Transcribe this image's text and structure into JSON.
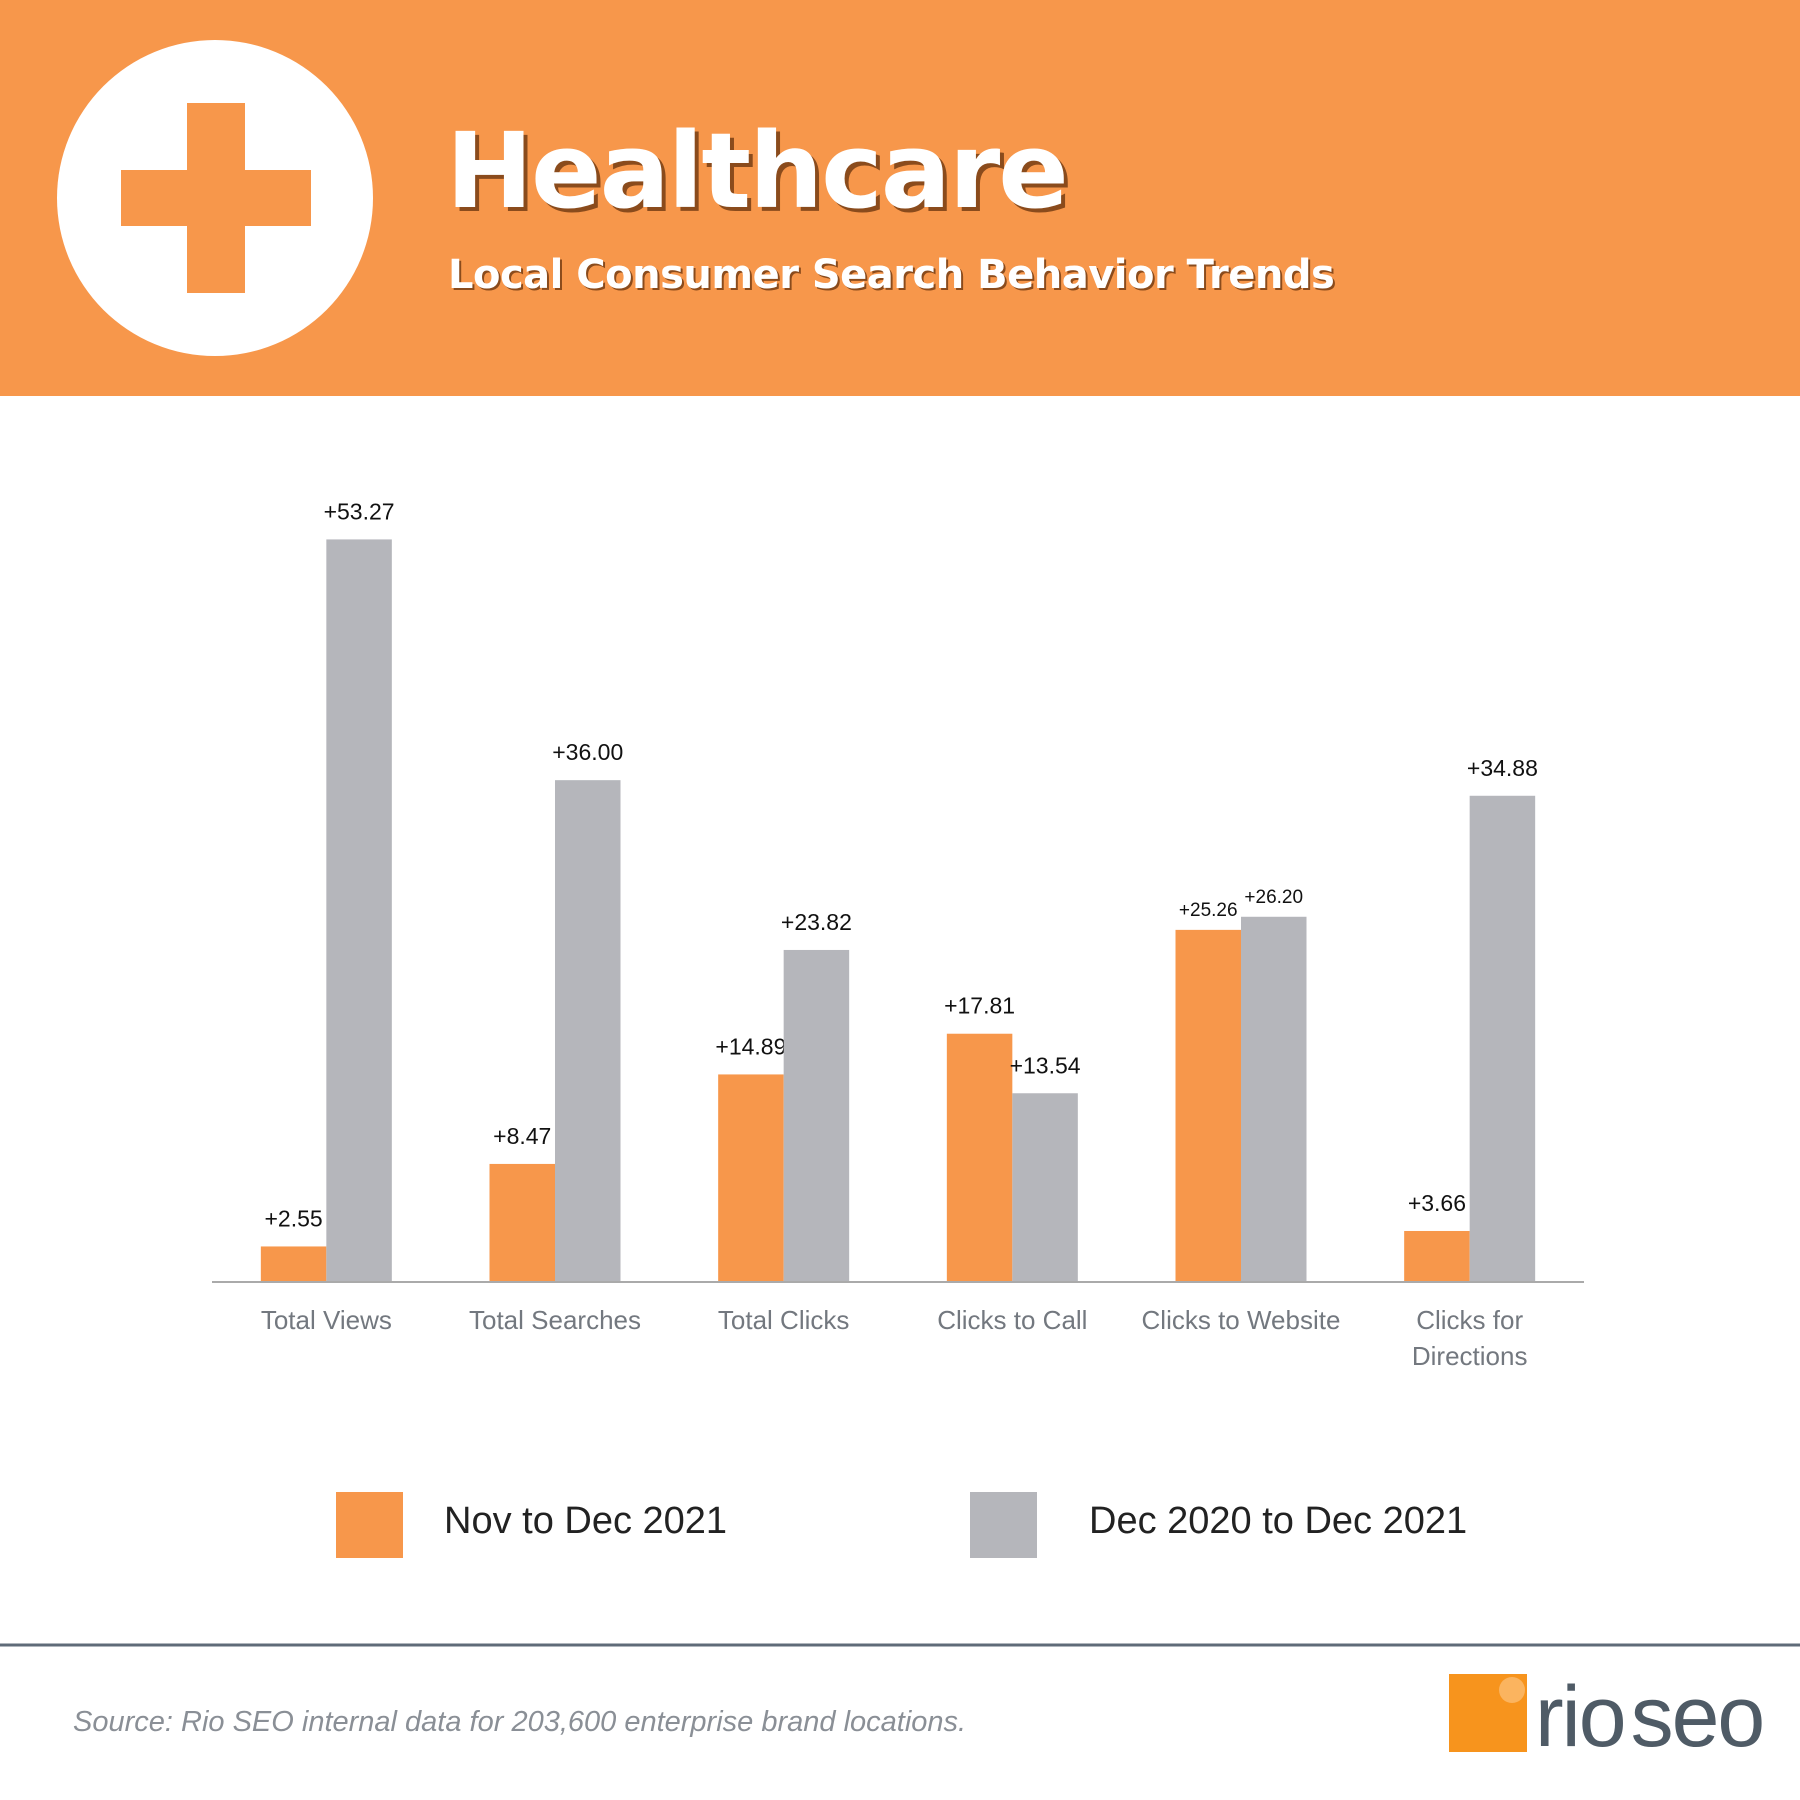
{
  "chart_data": {
    "type": "bar",
    "title": "Healthcare",
    "subtitle": "Local Consumer Search Behavior Trends",
    "categories": [
      "Total Views",
      "Total Searches",
      "Total Clicks",
      "Clicks to Call",
      "Clicks to Website",
      "Clicks for Directions"
    ],
    "series": [
      {
        "name": "Nov to Dec 2021",
        "color": "#f7974b",
        "values": [
          2.55,
          8.47,
          14.89,
          17.81,
          25.26,
          3.66
        ],
        "value_labels": [
          "+2.55",
          "+8.47",
          "+14.89",
          "+17.81",
          "+25.26",
          "+3.66"
        ]
      },
      {
        "name": "Dec 2020 to Dec 2021",
        "color": "#b5b6bb",
        "values": [
          53.27,
          36.0,
          23.82,
          13.54,
          26.2,
          34.88
        ],
        "value_labels": [
          "+53.27",
          "+36.00",
          "+23.82",
          "+13.54",
          "+26.20",
          "+34.88"
        ]
      }
    ],
    "source": "Source: Rio SEO internal data for 203,600 enterprise brand locations."
  },
  "logo": [
    "rio",
    "seo"
  ]
}
